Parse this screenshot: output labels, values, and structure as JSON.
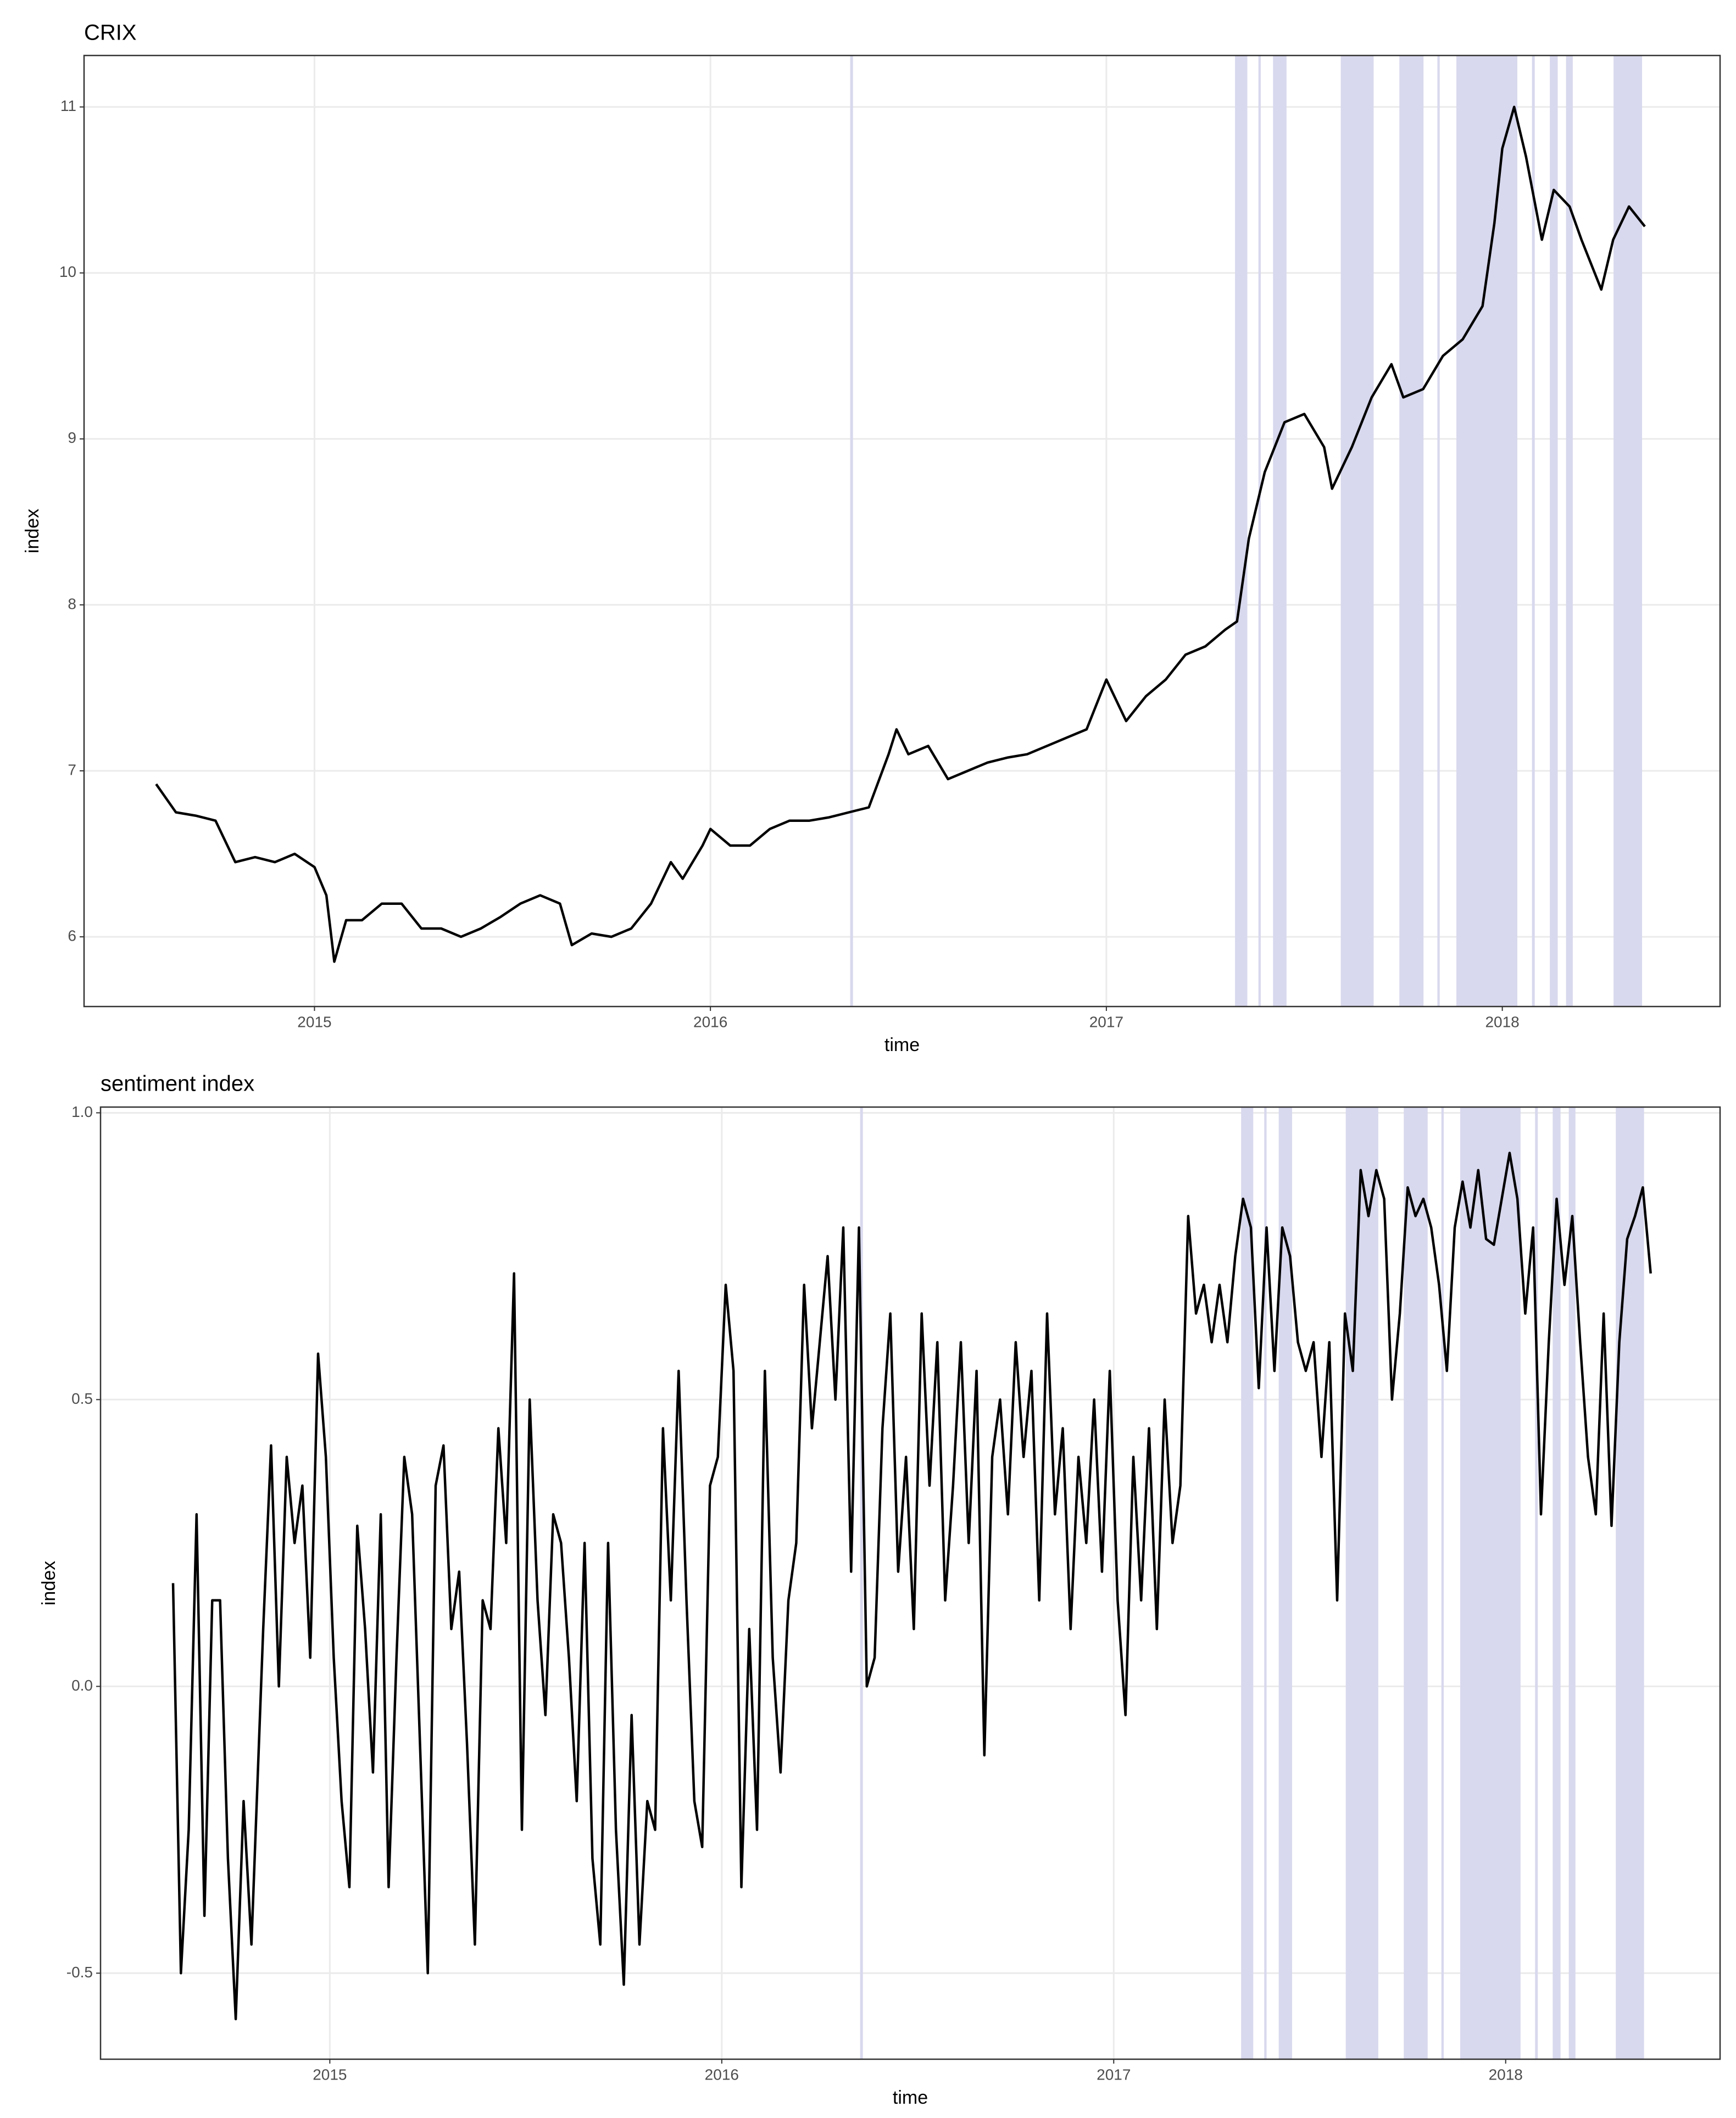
{
  "chart_data": [
    {
      "type": "line",
      "title": "CRIX",
      "x_label": "time",
      "y_label": "index",
      "xlim": [
        2014.418,
        2018.55
      ],
      "xticks": [
        2015,
        2016,
        2017,
        2018
      ],
      "ylim": [
        5.58,
        11.31
      ],
      "yticks": [
        6,
        7,
        8,
        9,
        10,
        11
      ],
      "grid": true,
      "line_color": "#000000",
      "shade_color": "#d8d8ee",
      "shaded_regions": [
        [
          2016.353,
          2016.36
        ],
        [
          2017.325,
          2017.356
        ],
        [
          2017.384,
          2017.39
        ],
        [
          2017.421,
          2017.455
        ],
        [
          2017.592,
          2017.675
        ],
        [
          2017.74,
          2017.801
        ],
        [
          2017.836,
          2017.842
        ],
        [
          2017.884,
          2018.038
        ],
        [
          2018.075,
          2018.082
        ],
        [
          2018.12,
          2018.14
        ],
        [
          2018.161,
          2018.178
        ],
        [
          2018.281,
          2018.353
        ]
      ],
      "x": [
        2014.6,
        2014.65,
        2014.7,
        2014.75,
        2014.8,
        2014.85,
        2014.9,
        2014.95,
        2015.0,
        2015.03,
        2015.05,
        2015.08,
        2015.12,
        2015.17,
        2015.22,
        2015.27,
        2015.32,
        2015.37,
        2015.42,
        2015.47,
        2015.52,
        2015.57,
        2015.62,
        2015.65,
        2015.7,
        2015.75,
        2015.8,
        2015.85,
        2015.9,
        2015.93,
        2015.98,
        2016.0,
        2016.05,
        2016.1,
        2016.15,
        2016.2,
        2016.25,
        2016.3,
        2016.35,
        2016.4,
        2016.45,
        2016.47,
        2016.5,
        2016.55,
        2016.6,
        2016.65,
        2016.7,
        2016.75,
        2016.8,
        2016.85,
        2016.9,
        2016.95,
        2017.0,
        2017.05,
        2017.1,
        2017.15,
        2017.2,
        2017.25,
        2017.3,
        2017.33,
        2017.36,
        2017.4,
        2017.45,
        2017.5,
        2017.55,
        2017.57,
        2017.62,
        2017.67,
        2017.72,
        2017.75,
        2017.8,
        2017.85,
        2017.9,
        2017.95,
        2017.98,
        2018.0,
        2018.03,
        2018.06,
        2018.1,
        2018.13,
        2018.17,
        2018.2,
        2018.25,
        2018.28,
        2018.32,
        2018.36
      ],
      "values": [
        6.92,
        6.75,
        6.73,
        6.7,
        6.45,
        6.48,
        6.45,
        6.5,
        6.42,
        6.25,
        5.85,
        6.1,
        6.1,
        6.2,
        6.2,
        6.05,
        6.05,
        6.0,
        6.05,
        6.12,
        6.2,
        6.25,
        6.2,
        5.95,
        6.02,
        6.0,
        6.05,
        6.2,
        6.45,
        6.35,
        6.55,
        6.65,
        6.55,
        6.55,
        6.65,
        6.7,
        6.7,
        6.72,
        6.75,
        6.78,
        7.1,
        7.25,
        7.1,
        7.15,
        6.95,
        7.0,
        7.05,
        7.08,
        7.1,
        7.15,
        7.2,
        7.25,
        7.55,
        7.3,
        7.45,
        7.55,
        7.7,
        7.75,
        7.85,
        7.9,
        8.4,
        8.8,
        9.1,
        9.15,
        8.95,
        8.7,
        8.95,
        9.25,
        9.45,
        9.25,
        9.3,
        9.5,
        9.6,
        9.8,
        10.3,
        10.75,
        11.0,
        10.7,
        10.2,
        10.5,
        10.4,
        10.2,
        9.9,
        10.2,
        10.4,
        10.28
      ]
    },
    {
      "type": "line",
      "title": "sentiment index",
      "x_label": "time",
      "y_label": "index",
      "xlim": [
        2014.415,
        2018.547
      ],
      "xticks": [
        2015,
        2016,
        2017,
        2018
      ],
      "ylim": [
        -0.65,
        1.01
      ],
      "yticks": [
        {
          "value": -0.5,
          "label": "-0.5"
        },
        {
          "value": 0,
          "label": "0.0"
        },
        0.5,
        {
          "value": 1,
          "label": "1.0"
        }
      ],
      "grid": true,
      "line_color": "#000000",
      "shade_color": "#d8d8ee",
      "shaded_regions": [
        [
          2016.353,
          2016.36
        ],
        [
          2017.325,
          2017.356
        ],
        [
          2017.384,
          2017.39
        ],
        [
          2017.421,
          2017.455
        ],
        [
          2017.592,
          2017.675
        ],
        [
          2017.74,
          2017.801
        ],
        [
          2017.836,
          2017.842
        ],
        [
          2017.884,
          2018.038
        ],
        [
          2018.075,
          2018.082
        ],
        [
          2018.12,
          2018.14
        ],
        [
          2018.161,
          2018.178
        ],
        [
          2018.281,
          2018.353
        ]
      ],
      "x": [
        2014.6,
        2014.62,
        2014.64,
        2014.66,
        2014.68,
        2014.7,
        2014.72,
        2014.74,
        2014.76,
        2014.78,
        2014.8,
        2014.83,
        2014.85,
        2014.87,
        2014.89,
        2014.91,
        2014.93,
        2014.95,
        2014.97,
        2014.99,
        2015.01,
        2015.03,
        2015.05,
        2015.07,
        2015.09,
        2015.11,
        2015.13,
        2015.15,
        2015.17,
        2015.19,
        2015.21,
        2015.23,
        2015.25,
        2015.27,
        2015.29,
        2015.31,
        2015.33,
        2015.35,
        2015.37,
        2015.39,
        2015.41,
        2015.43,
        2015.45,
        2015.47,
        2015.49,
        2015.51,
        2015.53,
        2015.55,
        2015.57,
        2015.59,
        2015.61,
        2015.63,
        2015.65,
        2015.67,
        2015.69,
        2015.71,
        2015.73,
        2015.75,
        2015.77,
        2015.79,
        2015.81,
        2015.83,
        2015.85,
        2015.87,
        2015.89,
        2015.91,
        2015.93,
        2015.95,
        2015.97,
        2015.99,
        2016.01,
        2016.03,
        2016.05,
        2016.07,
        2016.09,
        2016.11,
        2016.13,
        2016.15,
        2016.17,
        2016.19,
        2016.21,
        2016.23,
        2016.25,
        2016.27,
        2016.29,
        2016.31,
        2016.33,
        2016.35,
        2016.37,
        2016.39,
        2016.41,
        2016.43,
        2016.45,
        2016.47,
        2016.49,
        2016.51,
        2016.53,
        2016.55,
        2016.57,
        2016.59,
        2016.61,
        2016.63,
        2016.65,
        2016.67,
        2016.69,
        2016.71,
        2016.73,
        2016.75,
        2016.77,
        2016.79,
        2016.81,
        2016.83,
        2016.85,
        2016.87,
        2016.89,
        2016.91,
        2016.93,
        2016.95,
        2016.97,
        2016.99,
        2017.01,
        2017.03,
        2017.05,
        2017.07,
        2017.09,
        2017.11,
        2017.13,
        2017.15,
        2017.17,
        2017.19,
        2017.21,
        2017.23,
        2017.25,
        2017.27,
        2017.29,
        2017.31,
        2017.33,
        2017.35,
        2017.37,
        2017.39,
        2017.41,
        2017.43,
        2017.45,
        2017.47,
        2017.49,
        2017.51,
        2017.53,
        2017.55,
        2017.57,
        2017.59,
        2017.61,
        2017.63,
        2017.65,
        2017.67,
        2017.69,
        2017.71,
        2017.73,
        2017.75,
        2017.77,
        2017.79,
        2017.81,
        2017.83,
        2017.85,
        2017.87,
        2017.89,
        2017.91,
        2017.93,
        2017.95,
        2017.97,
        2017.99,
        2018.01,
        2018.03,
        2018.05,
        2018.07,
        2018.09,
        2018.11,
        2018.13,
        2018.15,
        2018.17,
        2018.19,
        2018.21,
        2018.23,
        2018.25,
        2018.27,
        2018.29,
        2018.31,
        2018.33,
        2018.35,
        2018.37
      ],
      "values": [
        0.18,
        -0.5,
        -0.25,
        0.3,
        -0.4,
        0.15,
        0.15,
        -0.3,
        -0.58,
        -0.2,
        -0.45,
        0.1,
        0.42,
        0.0,
        0.4,
        0.25,
        0.35,
        0.05,
        0.58,
        0.4,
        0.05,
        -0.2,
        -0.35,
        0.28,
        0.1,
        -0.15,
        0.3,
        -0.35,
        0.05,
        0.4,
        0.3,
        -0.1,
        -0.5,
        0.35,
        0.42,
        0.1,
        0.2,
        -0.1,
        -0.45,
        0.15,
        0.1,
        0.45,
        0.25,
        0.72,
        -0.25,
        0.5,
        0.15,
        -0.05,
        0.3,
        0.25,
        0.05,
        -0.2,
        0.25,
        -0.3,
        -0.45,
        0.25,
        -0.25,
        -0.52,
        -0.05,
        -0.45,
        -0.2,
        -0.25,
        0.45,
        0.15,
        0.55,
        0.15,
        -0.2,
        -0.28,
        0.35,
        0.4,
        0.7,
        0.55,
        -0.35,
        0.1,
        -0.25,
        0.55,
        0.05,
        -0.15,
        0.15,
        0.25,
        0.7,
        0.45,
        0.6,
        0.75,
        0.5,
        0.8,
        0.2,
        0.8,
        0.0,
        0.05,
        0.45,
        0.65,
        0.2,
        0.4,
        0.1,
        0.65,
        0.35,
        0.6,
        0.15,
        0.35,
        0.6,
        0.25,
        0.55,
        -0.12,
        0.4,
        0.5,
        0.3,
        0.6,
        0.4,
        0.55,
        0.15,
        0.65,
        0.3,
        0.45,
        0.1,
        0.4,
        0.25,
        0.5,
        0.2,
        0.55,
        0.15,
        -0.05,
        0.4,
        0.15,
        0.45,
        0.1,
        0.5,
        0.25,
        0.35,
        0.82,
        0.65,
        0.7,
        0.6,
        0.7,
        0.6,
        0.75,
        0.85,
        0.8,
        0.52,
        0.8,
        0.55,
        0.8,
        0.75,
        0.6,
        0.55,
        0.6,
        0.4,
        0.6,
        0.15,
        0.65,
        0.55,
        0.9,
        0.82,
        0.9,
        0.85,
        0.5,
        0.65,
        0.87,
        0.82,
        0.85,
        0.8,
        0.7,
        0.55,
        0.8,
        0.88,
        0.8,
        0.9,
        0.78,
        0.77,
        0.85,
        0.93,
        0.85,
        0.65,
        0.8,
        0.3,
        0.6,
        0.85,
        0.7,
        0.82,
        0.6,
        0.4,
        0.3,
        0.65,
        0.28,
        0.6,
        0.78,
        0.82,
        0.87,
        0.72
      ]
    }
  ]
}
